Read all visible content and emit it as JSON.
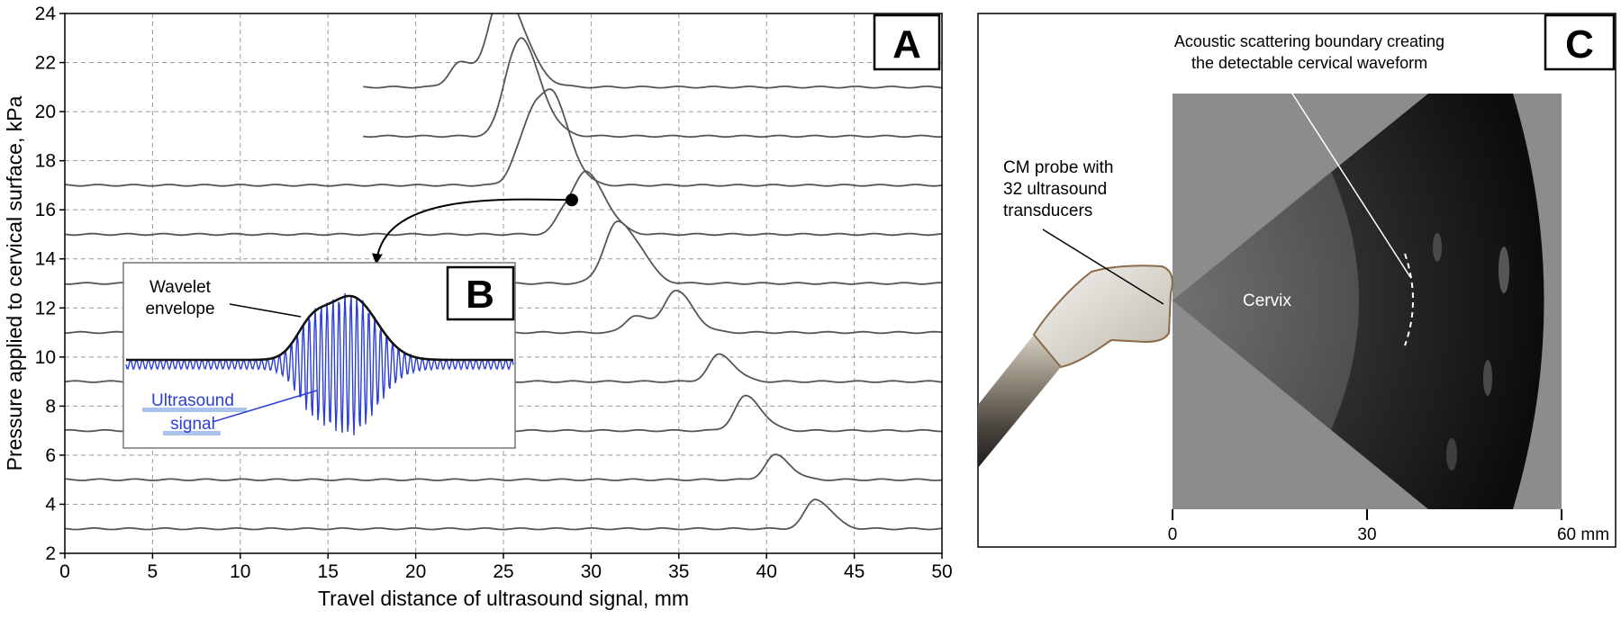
{
  "panel_a": {
    "letter": "A",
    "xlabel": "Travel distance of ultrasound signal, mm",
    "ylabel": "Pressure applied to cervical surface, kPa"
  },
  "panel_b": {
    "letter": "B",
    "envelope_label": [
      "Wavelet",
      "envelope"
    ],
    "signal_label": [
      "Ultrasound",
      "signal"
    ]
  },
  "panel_c": {
    "letter": "C",
    "boundary_label": [
      "Acoustic scattering boundary creating",
      "the detectable cervical waveform"
    ],
    "probe_label": [
      "CM probe with",
      "32 ultrasound",
      "transducers"
    ],
    "cervix_label": "Cervix",
    "axis_ticks": [
      "0",
      "30",
      "60 mm"
    ]
  },
  "colors": {
    "trace": "#555555",
    "grid": "#9a9a9a",
    "signal": "#2b3fd6",
    "envelope": "#111111",
    "label_underline": "#a9c4ec",
    "ultrasound_bg": "#8c8c8c"
  },
  "chart_data": [
    {
      "type": "line",
      "xlabel": "Travel distance of ultrasound signal, mm",
      "ylabel": "Pressure applied to cervical surface, kPa",
      "xlim": [
        0,
        50
      ],
      "ylim": [
        2,
        24
      ],
      "xticks": [
        0,
        5,
        10,
        15,
        20,
        25,
        30,
        35,
        40,
        45,
        50
      ],
      "yticks": [
        2,
        4,
        6,
        8,
        10,
        12,
        14,
        16,
        18,
        20,
        22,
        24
      ],
      "grid": true,
      "traces": [
        {
          "baseline": 21,
          "x_start": 17,
          "peaks": [
            [
              22.5,
              1.0
            ],
            [
              24.5,
              1.2
            ],
            [
              25.2,
              3.0
            ]
          ]
        },
        {
          "baseline": 19,
          "x_start": 17,
          "peaks": [
            [
              25.5,
              1.8
            ],
            [
              26.2,
              2.5
            ]
          ]
        },
        {
          "baseline": 17,
          "x_start": 0,
          "peaks": [
            [
              25.8,
              0.6
            ],
            [
              27.0,
              3.0
            ],
            [
              28.0,
              1.5
            ]
          ]
        },
        {
          "baseline": 15,
          "x_start": 0,
          "peaks": [
            [
              28.5,
              0.8
            ],
            [
              29.8,
              2.3
            ]
          ]
        },
        {
          "baseline": 13,
          "x_start": 0,
          "peaks": [
            [
              31.5,
              2.5
            ],
            [
              33.0,
              0.3
            ]
          ]
        },
        {
          "baseline": 11,
          "x_start": 0,
          "peaks": [
            [
              32.5,
              0.7
            ],
            [
              34.8,
              1.7
            ]
          ]
        },
        {
          "baseline": 9,
          "x_start": 0,
          "peaks": [
            [
              37.3,
              1.1
            ]
          ]
        },
        {
          "baseline": 7,
          "x_start": 0,
          "peaks": [
            [
              38.8,
              1.4
            ]
          ]
        },
        {
          "baseline": 5,
          "x_start": 0,
          "peaks": [
            [
              40.5,
              1.0
            ]
          ]
        },
        {
          "baseline": 3,
          "x_start": 0,
          "peaks": [
            [
              42.8,
              1.2
            ]
          ]
        }
      ],
      "highlight_point": [
        28.9,
        16.4
      ]
    }
  ]
}
